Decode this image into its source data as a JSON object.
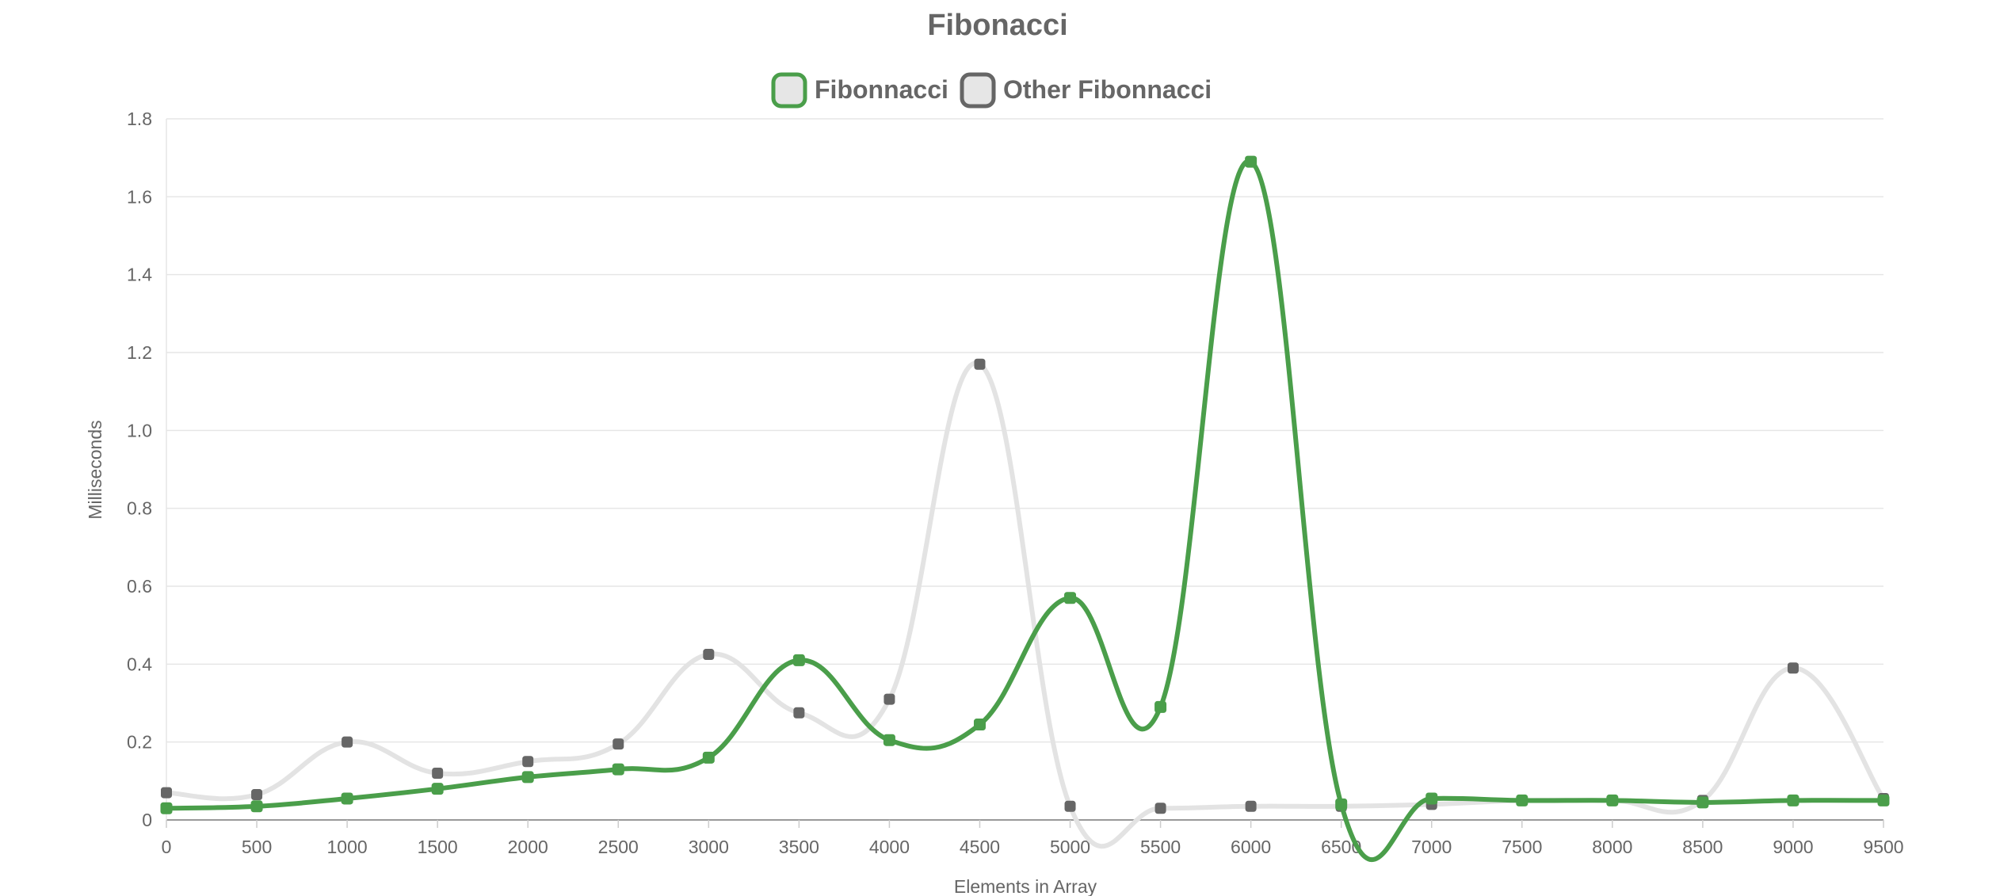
{
  "chart_data": {
    "type": "line",
    "title": "Fibonacci",
    "xlabel": "Elements in Array",
    "ylabel": "Milliseconds",
    "categories": [
      "0",
      "500",
      "1000",
      "1500",
      "2000",
      "2500",
      "3000",
      "3500",
      "4000",
      "4500",
      "5000",
      "5500",
      "6000",
      "6500",
      "7000",
      "7500",
      "8000",
      "8500",
      "9000",
      "9500"
    ],
    "ylim": [
      0,
      1.8
    ],
    "yticks": [
      "0",
      "0.2",
      "0.4",
      "0.6",
      "0.8",
      "1.0",
      "1.2",
      "1.4",
      "1.6",
      "1.8"
    ],
    "grid": true,
    "legend_position": "top-center",
    "series": [
      {
        "name": "Fibonnacci",
        "color": "#4a9e4a",
        "values": [
          0.03,
          0.035,
          0.055,
          0.08,
          0.11,
          0.13,
          0.16,
          0.41,
          0.205,
          0.245,
          0.57,
          0.29,
          1.69,
          0.04,
          0.055,
          0.05,
          0.05,
          0.045,
          0.05,
          0.05
        ]
      },
      {
        "name": "Other Fibonnacci",
        "color": "#e3e3e3",
        "point_color": "#666666",
        "values": [
          0.07,
          0.065,
          0.2,
          0.12,
          0.15,
          0.195,
          0.425,
          0.275,
          0.31,
          1.17,
          0.035,
          0.03,
          0.035,
          0.035,
          0.04,
          0.05,
          0.05,
          0.05,
          0.39,
          0.055
        ]
      }
    ]
  }
}
